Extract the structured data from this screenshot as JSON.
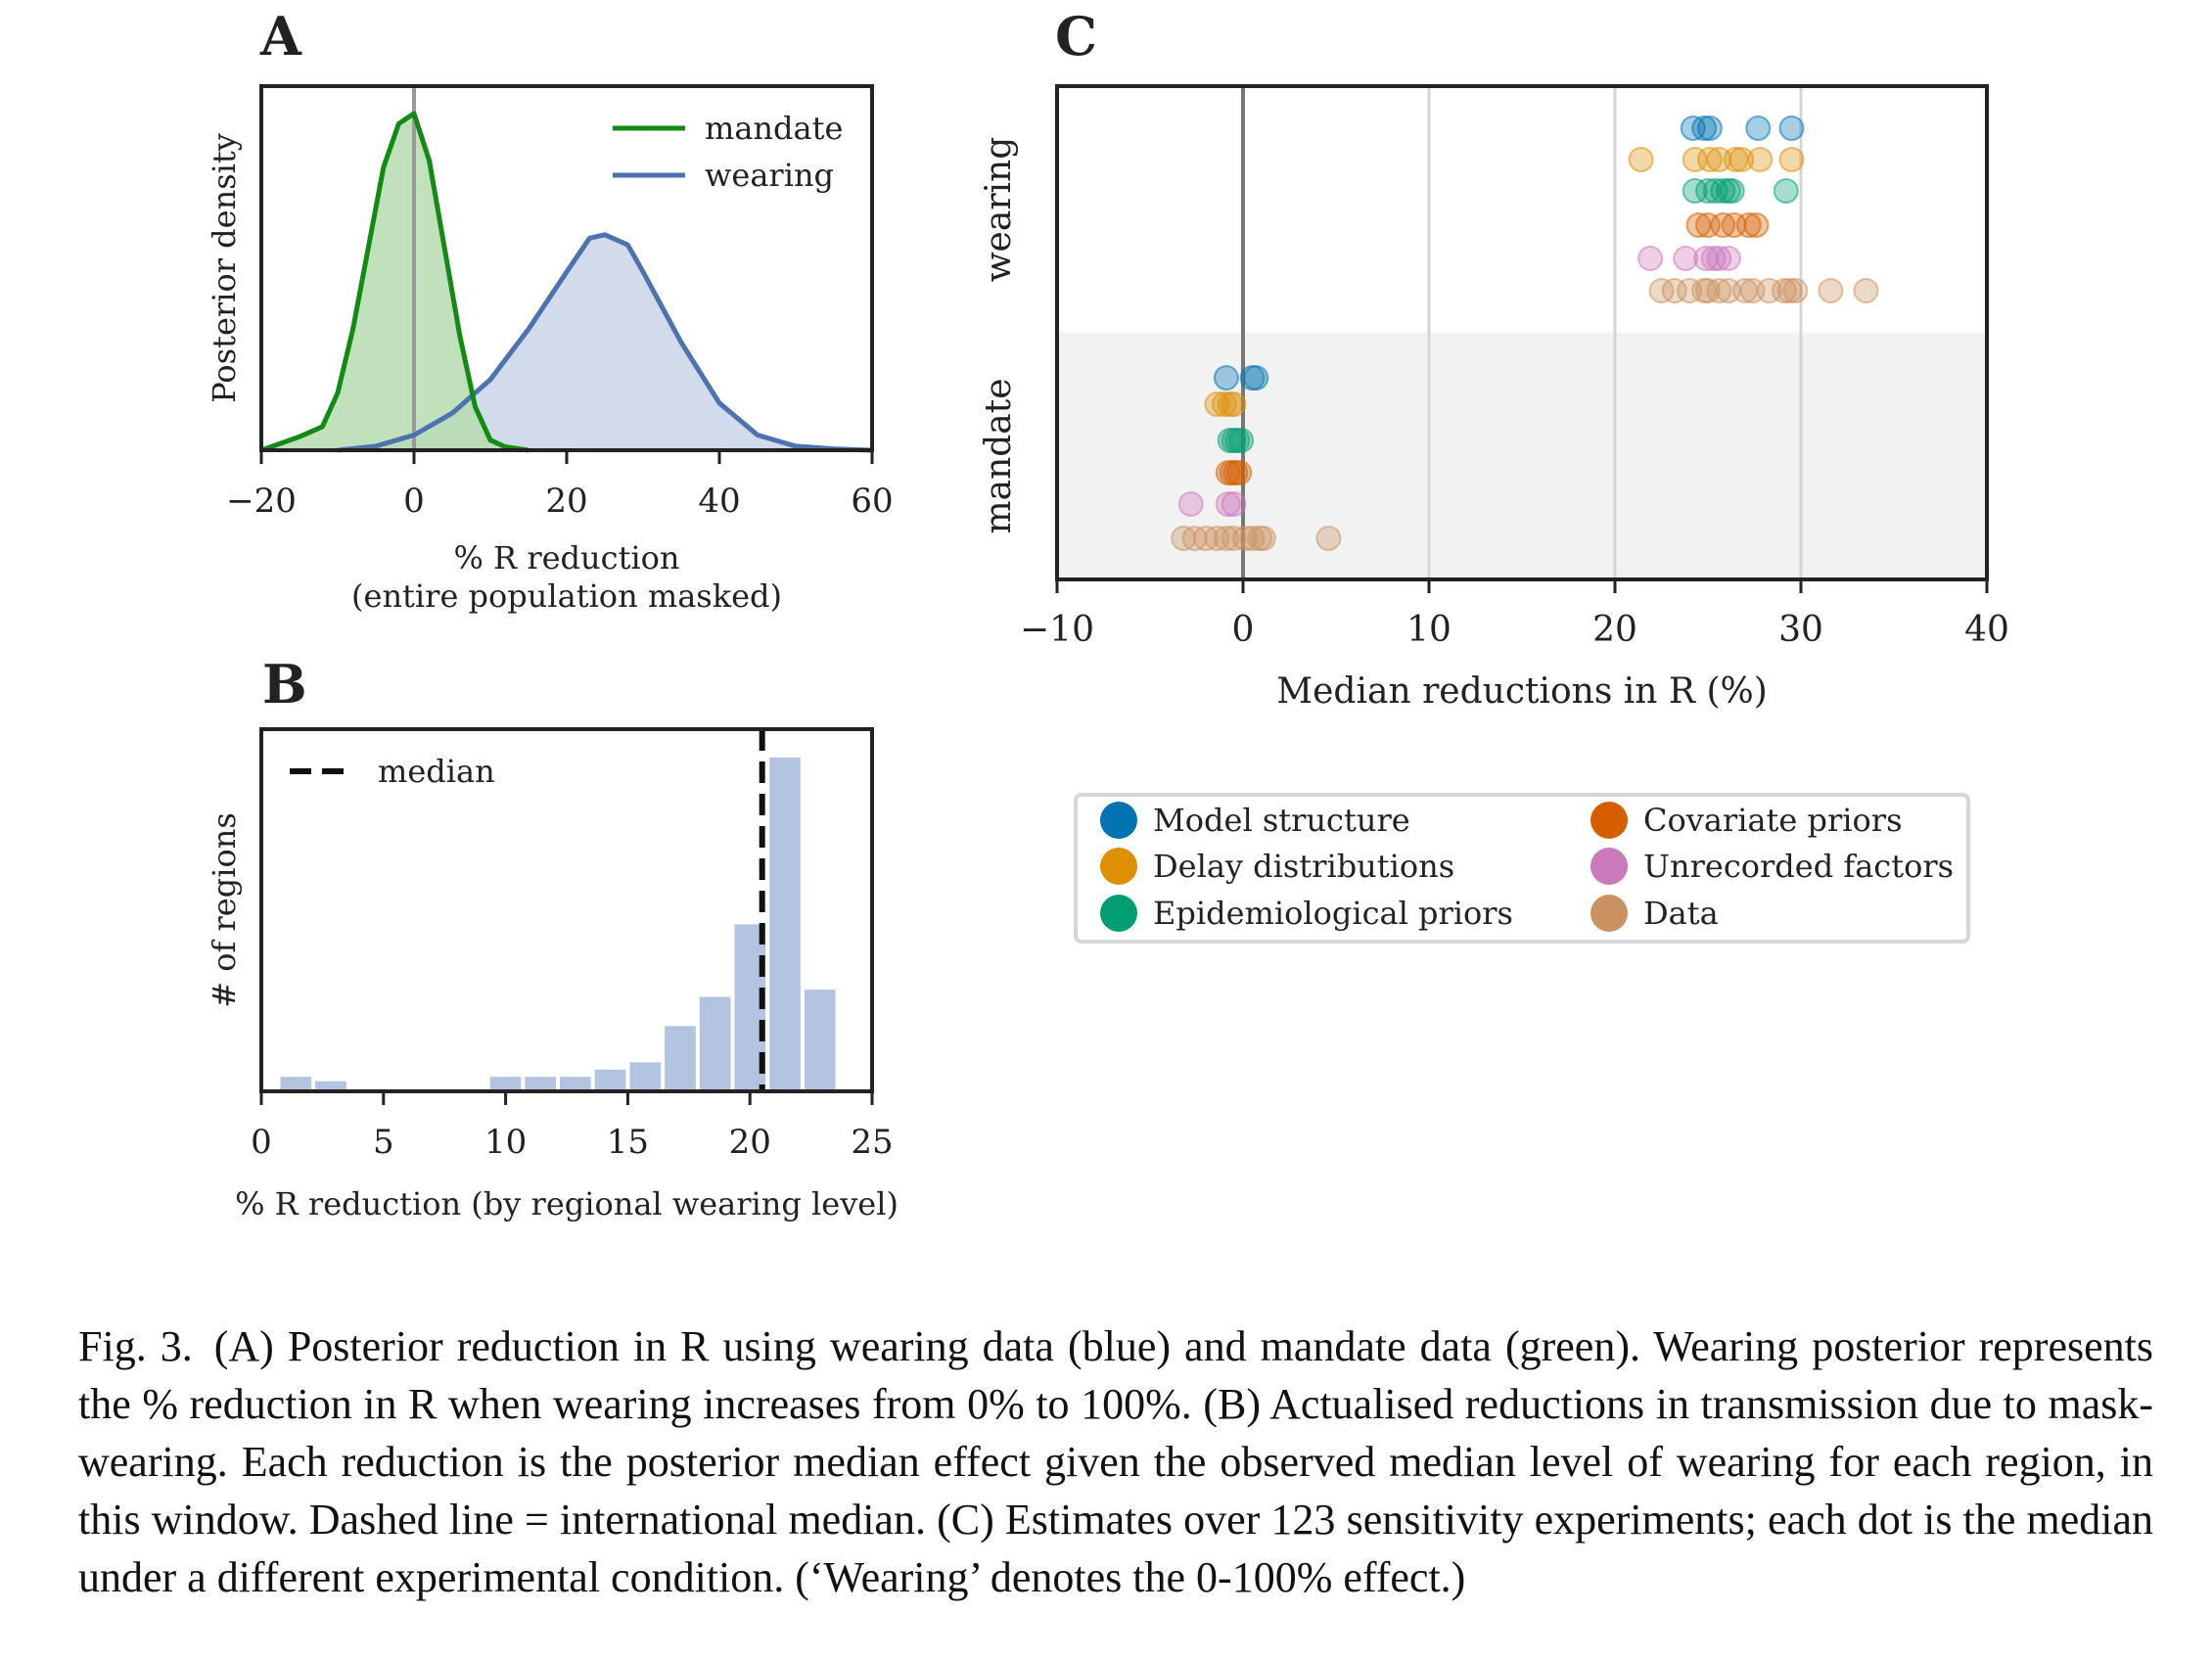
{
  "chart_data": [
    {
      "panel": "A",
      "type": "area",
      "xlabel": "% R reduction",
      "xlabel_2": "(entire population masked)",
      "ylabel": "Posterior density",
      "xlim": [
        -20,
        60
      ],
      "xticks": [
        -20,
        0,
        20,
        40,
        60
      ],
      "xtick_labels": [
        "−20",
        "0",
        "20",
        "40",
        "60"
      ],
      "legend_position": "top-right",
      "series": [
        {
          "name": "mandate",
          "color": "#138a13",
          "fill": "#b6dcb0",
          "x": [
            -20,
            -15,
            -12,
            -10,
            -8,
            -6,
            -4,
            -2,
            0,
            2,
            4,
            6,
            8,
            10,
            12,
            15
          ],
          "y": [
            0,
            0.04,
            0.07,
            0.17,
            0.36,
            0.6,
            0.84,
            0.97,
            1.0,
            0.86,
            0.6,
            0.34,
            0.13,
            0.03,
            0.01,
            0
          ]
        },
        {
          "name": "wearing",
          "color": "#4c72b0",
          "fill": "#cad5e8",
          "x": [
            -10,
            -5,
            0,
            5,
            10,
            15,
            20,
            23,
            25,
            28,
            30,
            35,
            40,
            45,
            50,
            55,
            60
          ],
          "y": [
            0,
            0.012,
            0.045,
            0.11,
            0.21,
            0.36,
            0.53,
            0.63,
            0.64,
            0.61,
            0.53,
            0.32,
            0.14,
            0.045,
            0.012,
            0.004,
            0
          ]
        }
      ],
      "vline_x": 0
    },
    {
      "panel": "B",
      "type": "bar",
      "xlabel": "% R reduction (by regional wearing level)",
      "ylabel": "# of regions",
      "xlim": [
        0,
        25
      ],
      "xticks": [
        0,
        5,
        10,
        15,
        20,
        25
      ],
      "bin_width": 1.43,
      "bin_starts": [
        0.7,
        2.13,
        3.56,
        4.99,
        6.42,
        7.85,
        9.28,
        10.71,
        12.14,
        13.57,
        15.0,
        16.43,
        17.86,
        19.29,
        20.72,
        22.15
      ],
      "values": [
        1,
        0.7,
        0,
        0.1,
        0,
        0.1,
        1,
        1,
        1,
        1.5,
        2,
        4.5,
        6.5,
        11.5,
        23,
        7
      ],
      "ylim": [
        0,
        24
      ],
      "median_x": 20.5,
      "median_label": "median"
    },
    {
      "panel": "C",
      "type": "scatter",
      "xlabel": "Median reductions in R (%)",
      "xlim": [
        -10,
        40
      ],
      "xticks": [
        -10,
        0,
        10,
        20,
        30,
        40
      ],
      "xtick_labels": [
        "−10",
        "0",
        "10",
        "20",
        "30",
        "40"
      ],
      "vlines": [
        0,
        10,
        20,
        30
      ],
      "categories": [
        "wearing",
        "mandate"
      ],
      "series": [
        {
          "name": "Model structure",
          "color": "#0173b2",
          "wearing": [
            24.2,
            24.8,
            25.1,
            27.7,
            29.5
          ],
          "mandate": [
            -0.9,
            0.5,
            0.7
          ]
        },
        {
          "name": "Delay distributions",
          "color": "#de8f05",
          "wearing": [
            21.4,
            24.3,
            25.1,
            25.6,
            26.5,
            26.8,
            27.8,
            29.5
          ],
          "mandate": [
            -1.4,
            -1.0,
            -0.7,
            -0.5
          ]
        },
        {
          "name": "Epidemiological priors",
          "color": "#029e73",
          "wearing": [
            24.3,
            25.0,
            25.4,
            25.8,
            26.1,
            26.3,
            29.2
          ],
          "mandate": [
            -0.7,
            -0.5,
            -0.3,
            -0.1
          ]
        },
        {
          "name": "Covariate priors",
          "color": "#d55e00",
          "wearing": [
            24.5,
            25.0,
            25.8,
            26.4,
            27.2,
            27.6
          ],
          "mandate": [
            -0.8,
            -0.6,
            -0.4,
            -0.2
          ]
        },
        {
          "name": "Unrecorded factors",
          "color": "#cc78bc",
          "wearing": [
            21.9,
            23.8,
            24.9,
            25.3,
            25.6,
            26.1
          ],
          "mandate": [
            -2.8,
            -0.8,
            -0.5
          ]
        },
        {
          "name": "Data",
          "color": "#ca9161",
          "wearing": [
            22.5,
            23.2,
            24.0,
            24.8,
            25.0,
            25.6,
            26.1,
            27.0,
            27.4,
            28.3,
            29.1,
            29.4,
            29.7,
            31.6,
            33.5
          ],
          "mandate": [
            -3.2,
            -2.6,
            -2.0,
            -1.4,
            -0.9,
            -0.5,
            0.1,
            0.5,
            0.9,
            1.1,
            4.6
          ]
        }
      ],
      "legend_position": "below"
    }
  ],
  "panels": {
    "a_letter": "A",
    "b_letter": "B",
    "c_letter": "C"
  },
  "caption": "Fig. 3. (A) Posterior reduction in R using wearing data (blue) and mandate data (green). Wearing posterior represents the % reduction in R when wearing increases from 0% to 100%. (B) Actualised reductions in transmission due to mask-wearing. Each reduction is the posterior median effect given the observed median level of wearing for each region, in this window. Dashed line = international median. (C) Estimates over 123 sensitivity experiments; each dot is the median under a different experimental condition. (‘Wearing’ denotes the 0-100% effect.)"
}
